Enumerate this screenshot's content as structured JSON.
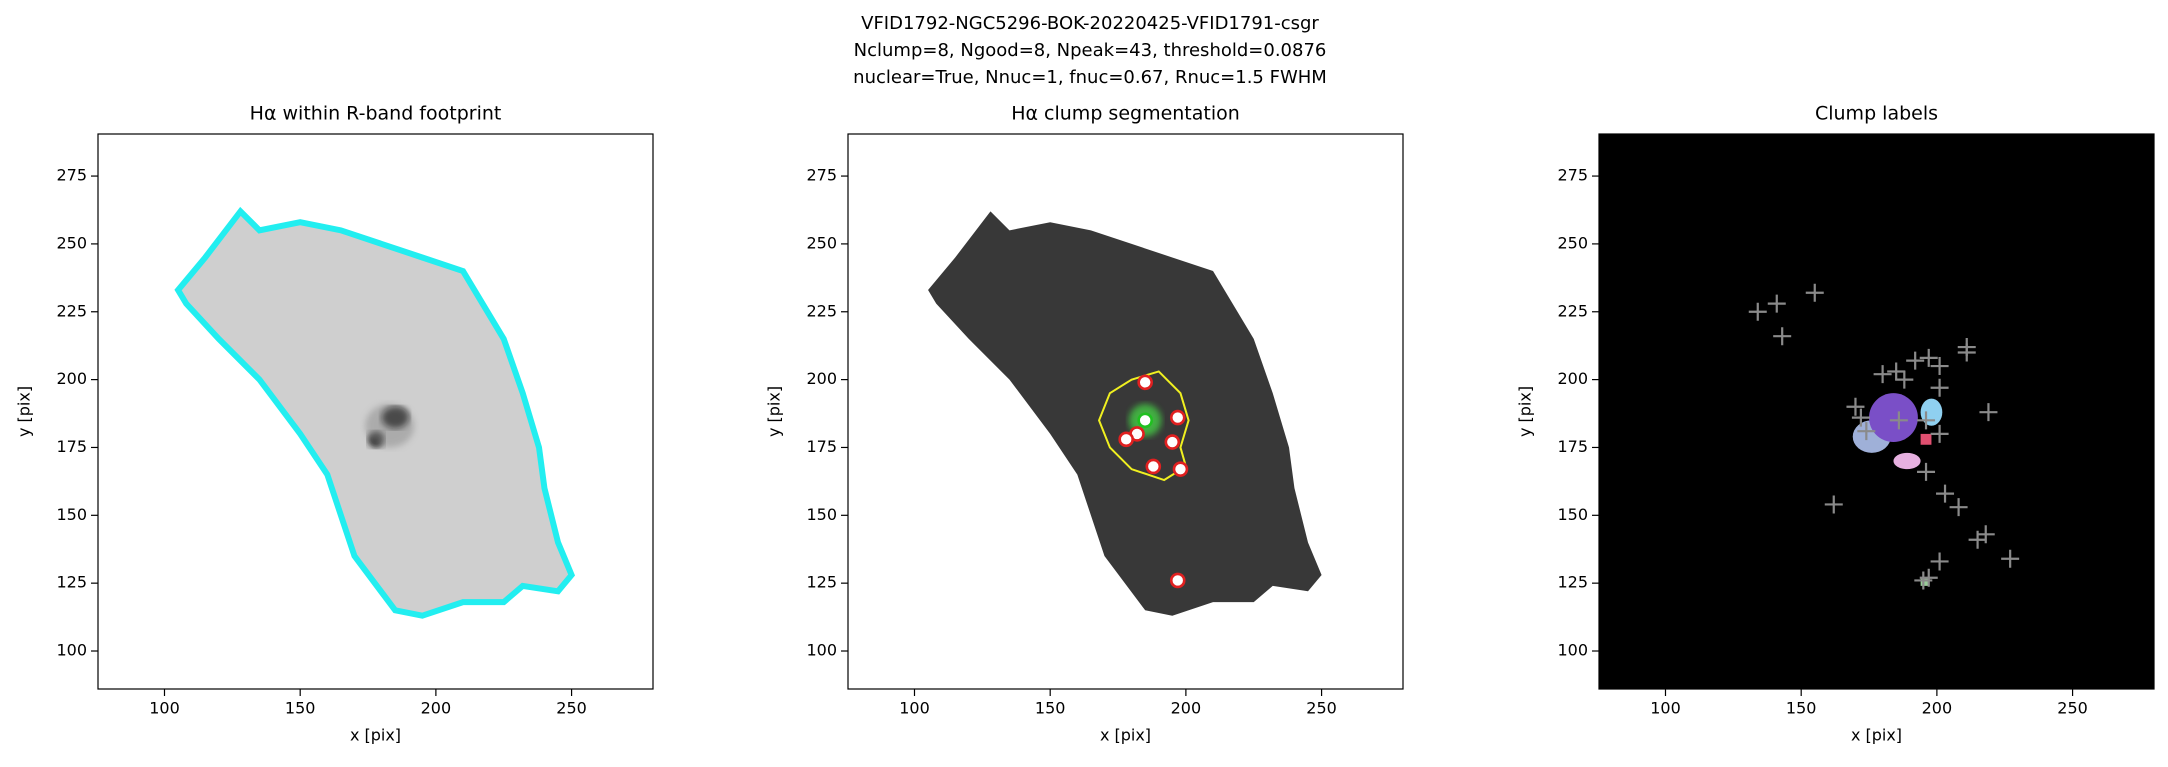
{
  "suptitle": [
    "VFID1792-NGC5296-BOK-20220425-VFID1791-csgr",
    "Nclump=8, Ngood=8, Npeak=43, threshold=0.0876",
    "nuclear=True, Nnuc=1, fnuc=0.67, Rnuc=1.5 FWHM"
  ],
  "chart_data": [
    {
      "type": "image",
      "title": "Hα within R-band footprint",
      "xlabel": "x [pix]",
      "ylabel": "y [pix]",
      "xlim": [
        75.5,
        280
      ],
      "ylim": [
        86,
        290.5
      ],
      "xticks": [
        100,
        150,
        200,
        250
      ],
      "yticks": [
        100,
        125,
        150,
        175,
        200,
        225,
        250,
        275
      ],
      "background": "#ffffff",
      "series": []
    },
    {
      "type": "image",
      "title": "Hα clump segmentation",
      "xlabel": "x [pix]",
      "ylabel": "y [pix]",
      "xlim": [
        75.5,
        280
      ],
      "ylim": [
        86,
        290.5
      ],
      "xticks": [
        100,
        150,
        200,
        250
      ],
      "yticks": [
        100,
        125,
        150,
        175,
        200,
        225,
        250,
        275
      ],
      "background": "#ffffff",
      "series": [
        {
          "marker": "circle",
          "color": "#e02020",
          "x": [
            185,
            197,
            182,
            178,
            195,
            188,
            198,
            197
          ],
          "y": [
            199,
            186,
            180,
            178,
            177,
            168,
            167,
            126
          ]
        },
        {
          "marker": "circle",
          "color": "#20c020",
          "x": [
            185
          ],
          "y": [
            185
          ]
        }
      ]
    },
    {
      "type": "image",
      "title": "Clump labels",
      "xlabel": "x [pix]",
      "ylabel": "y [pix]",
      "xlim": [
        75.5,
        280
      ],
      "ylim": [
        86,
        290.5
      ],
      "xticks": [
        100,
        150,
        200,
        250
      ],
      "yticks": [
        100,
        125,
        150,
        175,
        200,
        225,
        250,
        275
      ],
      "background": "#000000",
      "series": [
        {
          "marker": "plus",
          "color": "#8a8a8a",
          "x": [
            134,
            141,
            143,
            155,
            162,
            170,
            172,
            174,
            180,
            185,
            188,
            192,
            197,
            201,
            211,
            211,
            219,
            201,
            186,
            196,
            201,
            196,
            203,
            208,
            215,
            218,
            227,
            201,
            197,
            195
          ],
          "y": [
            225,
            228,
            216,
            232,
            154,
            190,
            186,
            181,
            202,
            203,
            200,
            207,
            208,
            205,
            212,
            210,
            188,
            197,
            185,
            185,
            180,
            166,
            158,
            153,
            141,
            143,
            134,
            133,
            127,
            126
          ]
        }
      ]
    }
  ]
}
